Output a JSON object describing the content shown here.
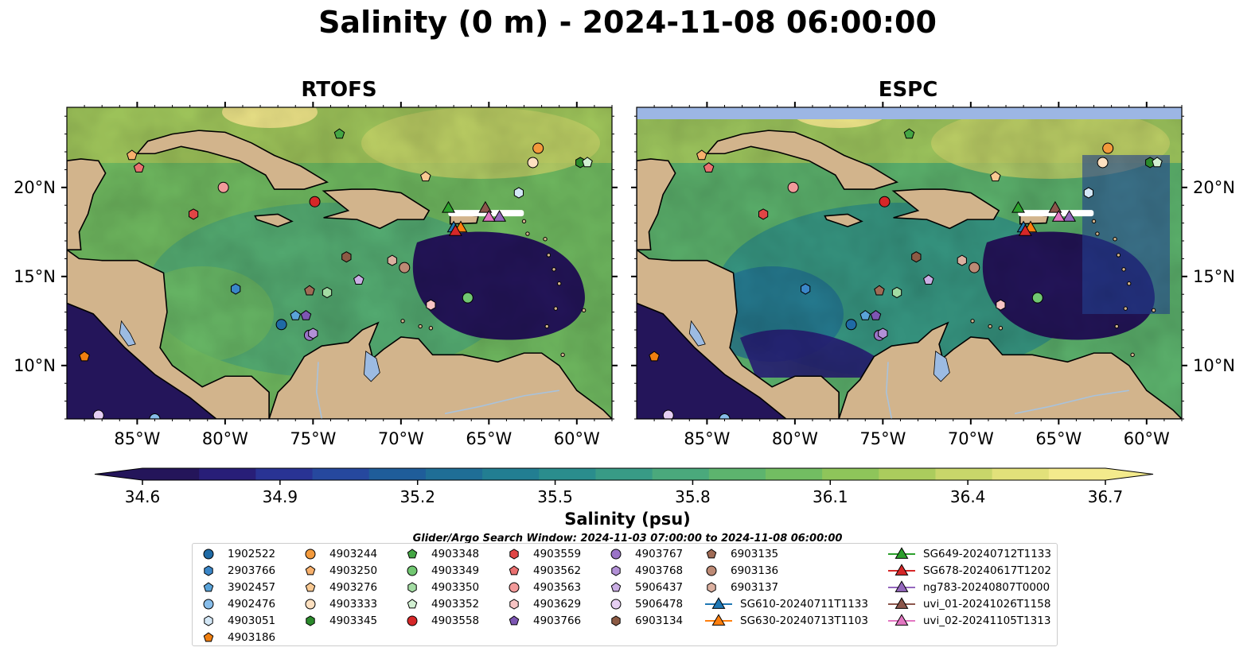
{
  "title": "Salinity (0 m) - 2024-11-08 06:00:00",
  "panels": [
    {
      "title": "RTOFS",
      "bluebar": false
    },
    {
      "title": "ESPC",
      "bluebar": true
    }
  ],
  "axes": {
    "lat_labels": [
      "20°N",
      "15°N",
      "10°N"
    ],
    "lat_values": [
      20,
      15,
      10
    ],
    "lon_labels": [
      "85°W",
      "80°W",
      "75°W",
      "70°W",
      "65°W",
      "60°W"
    ],
    "lon_values": [
      -85,
      -80,
      -75,
      -70,
      -65,
      -60
    ],
    "lon_range": [
      -89,
      -58
    ],
    "lat_range": [
      7,
      24.5
    ]
  },
  "colorbar": {
    "label": "Salinity (psu)",
    "min": 34.6,
    "max": 36.7,
    "ticks": [
      "34.6",
      "34.9",
      "35.2",
      "35.5",
      "35.8",
      "36.1",
      "36.4",
      "36.7"
    ],
    "tick_values": [
      34.6,
      34.9,
      35.2,
      35.5,
      35.8,
      36.1,
      36.4,
      36.7
    ],
    "colors": [
      "#24155a",
      "#281e78",
      "#293394",
      "#26489e",
      "#1f5d9a",
      "#1f6e96",
      "#227e92",
      "#2a8d8d",
      "#389b86",
      "#4aa97c",
      "#5db46e",
      "#72bd62",
      "#8ec55a",
      "#abcc5d",
      "#c8d66a",
      "#e2e17a",
      "#f3ea8c"
    ]
  },
  "search_window": "Glider/Argo Search Window: 2024-11-03 07:00:00 to 2024-11-08 06:00:00",
  "colors": {
    "land": "#d2b48c",
    "ocean_low": "#24155a",
    "lake": "#9cbbe2",
    "missing_bar": "#9cb6e4"
  },
  "legend": {
    "columns": [
      [
        {
          "label": "1902522",
          "marker": "circle",
          "color": "#1f6aa5"
        },
        {
          "label": "2903766",
          "marker": "hexagon",
          "color": "#3a86c8"
        },
        {
          "label": "3902457",
          "marker": "pentagon",
          "color": "#5aa3d9"
        },
        {
          "label": "4902476",
          "marker": "circle",
          "color": "#87bdea"
        },
        {
          "label": "4903051",
          "marker": "hexagon",
          "color": "#d3e7f6"
        },
        {
          "label": "4903186",
          "marker": "pentagon",
          "color": "#f07f10"
        }
      ],
      [
        {
          "label": "4903244",
          "marker": "circle",
          "color": "#f39a3c"
        },
        {
          "label": "4903250",
          "marker": "pentagon",
          "color": "#f7b06c"
        },
        {
          "label": "4903276",
          "marker": "pentagon",
          "color": "#f9c992"
        },
        {
          "label": "4903333",
          "marker": "circle",
          "color": "#fde0c0"
        },
        {
          "label": "4903345",
          "marker": "hexagon",
          "color": "#2b8a2b"
        }
      ],
      [
        {
          "label": "4903348",
          "marker": "pentagon",
          "color": "#44a644"
        },
        {
          "label": "4903349",
          "marker": "circle",
          "color": "#71c771"
        },
        {
          "label": "4903350",
          "marker": "hexagon",
          "color": "#a3dca3"
        },
        {
          "label": "4903352",
          "marker": "pentagon",
          "color": "#d2f0d2"
        },
        {
          "label": "4903558",
          "marker": "circle",
          "color": "#d62728"
        }
      ],
      [
        {
          "label": "4903559",
          "marker": "hexagon",
          "color": "#e04545"
        },
        {
          "label": "4903562",
          "marker": "pentagon",
          "color": "#ea7070"
        },
        {
          "label": "4903563",
          "marker": "circle",
          "color": "#f29a9a"
        },
        {
          "label": "4903629",
          "marker": "hexagon",
          "color": "#f8c4c4"
        },
        {
          "label": "4903766",
          "marker": "pentagon",
          "color": "#7d56b3"
        }
      ],
      [
        {
          "label": "4903767",
          "marker": "circle",
          "color": "#9a73c7"
        },
        {
          "label": "4903768",
          "marker": "hexagon",
          "color": "#b290d6"
        },
        {
          "label": "5906437",
          "marker": "pentagon",
          "color": "#caaee4"
        },
        {
          "label": "5906478",
          "marker": "circle",
          "color": "#e6cff3"
        },
        {
          "label": "6903134",
          "marker": "hexagon",
          "color": "#8c5a44"
        }
      ],
      [
        {
          "label": "6903135",
          "marker": "pentagon",
          "color": "#a06b55"
        },
        {
          "label": "6903136",
          "marker": "circle",
          "color": "#bd8a75"
        },
        {
          "label": "6903137",
          "marker": "hexagon",
          "color": "#dbb0a0"
        },
        {
          "label": "SG610-20240711T1133",
          "marker": "triangle-line",
          "color": "#1f77b4"
        },
        {
          "label": "SG630-20240713T1103",
          "marker": "triangle-line",
          "color": "#ff7f0e"
        }
      ],
      [
        {
          "label": "SG649-20240712T1133",
          "marker": "triangle-line",
          "color": "#2ca02c"
        },
        {
          "label": "SG678-20240617T1202",
          "marker": "triangle-line",
          "color": "#d62728"
        },
        {
          "label": "ng783-20240807T0000",
          "marker": "triangle-line",
          "color": "#9467bd"
        },
        {
          "label": "uvi_01-20241026T1158",
          "marker": "triangle-line",
          "color": "#8c564b"
        },
        {
          "label": "uvi_02-20241105T1313",
          "marker": "triangle-line",
          "color": "#e377c2"
        }
      ]
    ]
  },
  "platforms": [
    {
      "id": "1902522",
      "marker": "circle",
      "color": "#1f6aa5",
      "lon": -76.8,
      "lat": 12.3
    },
    {
      "id": "2903766",
      "marker": "hexagon",
      "color": "#3a86c8",
      "lon": -79.4,
      "lat": 14.3
    },
    {
      "id": "3902457",
      "marker": "pentagon",
      "color": "#5aa3d9",
      "lon": -76.0,
      "lat": 12.8
    },
    {
      "id": "4902476",
      "marker": "circle",
      "color": "#87bdea",
      "lon": -84.0,
      "lat": 7.0
    },
    {
      "id": "4903051",
      "marker": "hexagon",
      "color": "#d3e7f6",
      "lon": -63.3,
      "lat": 19.7
    },
    {
      "id": "4903186",
      "marker": "pentagon",
      "color": "#f07f10",
      "lon": -88.0,
      "lat": 10.5
    },
    {
      "id": "4903244",
      "marker": "circle",
      "color": "#f39a3c",
      "lon": -62.2,
      "lat": 22.2
    },
    {
      "id": "4903250",
      "marker": "pentagon",
      "color": "#f7b06c",
      "lon": -85.3,
      "lat": 21.8
    },
    {
      "id": "4903276",
      "marker": "pentagon",
      "color": "#f9c992",
      "lon": -68.6,
      "lat": 20.6
    },
    {
      "id": "4903333",
      "marker": "circle",
      "color": "#fde0c0",
      "lon": -62.5,
      "lat": 21.4
    },
    {
      "id": "4903345",
      "marker": "hexagon",
      "color": "#2b8a2b",
      "lon": -59.8,
      "lat": 21.4
    },
    {
      "id": "4903348",
      "marker": "pentagon",
      "color": "#44a644",
      "lon": -73.5,
      "lat": 23.0
    },
    {
      "id": "4903349",
      "marker": "circle",
      "color": "#71c771",
      "lon": -66.2,
      "lat": 13.8
    },
    {
      "id": "4903350",
      "marker": "hexagon",
      "color": "#a3dca3",
      "lon": -74.2,
      "lat": 14.1
    },
    {
      "id": "4903352",
      "marker": "pentagon",
      "color": "#d2f0d2",
      "lon": -59.4,
      "lat": 21.4
    },
    {
      "id": "4903558",
      "marker": "circle",
      "color": "#d62728",
      "lon": -74.9,
      "lat": 19.2
    },
    {
      "id": "4903559",
      "marker": "hexagon",
      "color": "#e04545",
      "lon": -81.8,
      "lat": 18.5
    },
    {
      "id": "4903562",
      "marker": "pentagon",
      "color": "#ea7070",
      "lon": -84.9,
      "lat": 21.1
    },
    {
      "id": "4903563",
      "marker": "circle",
      "color": "#f29a9a",
      "lon": -80.1,
      "lat": 20.0
    },
    {
      "id": "4903629",
      "marker": "hexagon",
      "color": "#f8c4c4",
      "lon": -68.3,
      "lat": 13.4
    },
    {
      "id": "4903766",
      "marker": "pentagon",
      "color": "#7d56b3",
      "lon": -75.4,
      "lat": 12.8
    },
    {
      "id": "4903767",
      "marker": "circle",
      "color": "#9a73c7",
      "lon": -75.2,
      "lat": 11.7
    },
    {
      "id": "4903768",
      "marker": "hexagon",
      "color": "#b290d6",
      "lon": -75.0,
      "lat": 11.8
    },
    {
      "id": "5906437",
      "marker": "pentagon",
      "color": "#caaee4",
      "lon": -72.4,
      "lat": 14.8
    },
    {
      "id": "5906478",
      "marker": "circle",
      "color": "#e6cff3",
      "lon": -87.2,
      "lat": 7.2
    },
    {
      "id": "6903134",
      "marker": "hexagon",
      "color": "#8c5a44",
      "lon": -73.1,
      "lat": 16.1
    },
    {
      "id": "6903135",
      "marker": "pentagon",
      "color": "#a06b55",
      "lon": -75.2,
      "lat": 14.2
    },
    {
      "id": "6903136",
      "marker": "circle",
      "color": "#bd8a75",
      "lon": -69.8,
      "lat": 15.5
    },
    {
      "id": "6903137",
      "marker": "hexagon",
      "color": "#dbb0a0",
      "lon": -70.5,
      "lat": 15.9
    },
    {
      "id": "SG610-20240711T1133",
      "marker": "triangle",
      "color": "#1f77b4",
      "lon": -67.0,
      "lat": 17.7
    },
    {
      "id": "SG630-20240713T1103",
      "marker": "triangle",
      "color": "#ff7f0e",
      "lon": -66.6,
      "lat": 17.7
    },
    {
      "id": "SG649-20240712T1133",
      "marker": "triangle",
      "color": "#2ca02c",
      "lon": -67.3,
      "lat": 18.8
    },
    {
      "id": "SG678-20240617T1202",
      "marker": "triangle",
      "color": "#d62728",
      "lon": -66.9,
      "lat": 17.5
    },
    {
      "id": "ng783-20240807T0000",
      "marker": "triangle",
      "color": "#9467bd",
      "lon": -64.4,
      "lat": 18.3
    },
    {
      "id": "uvi_01-20241026T1158",
      "marker": "triangle",
      "color": "#8c564b",
      "lon": -65.2,
      "lat": 18.8
    },
    {
      "id": "uvi_02-20241105T1313",
      "marker": "triangle",
      "color": "#e377c2",
      "lon": -65.0,
      "lat": 18.3
    }
  ]
}
